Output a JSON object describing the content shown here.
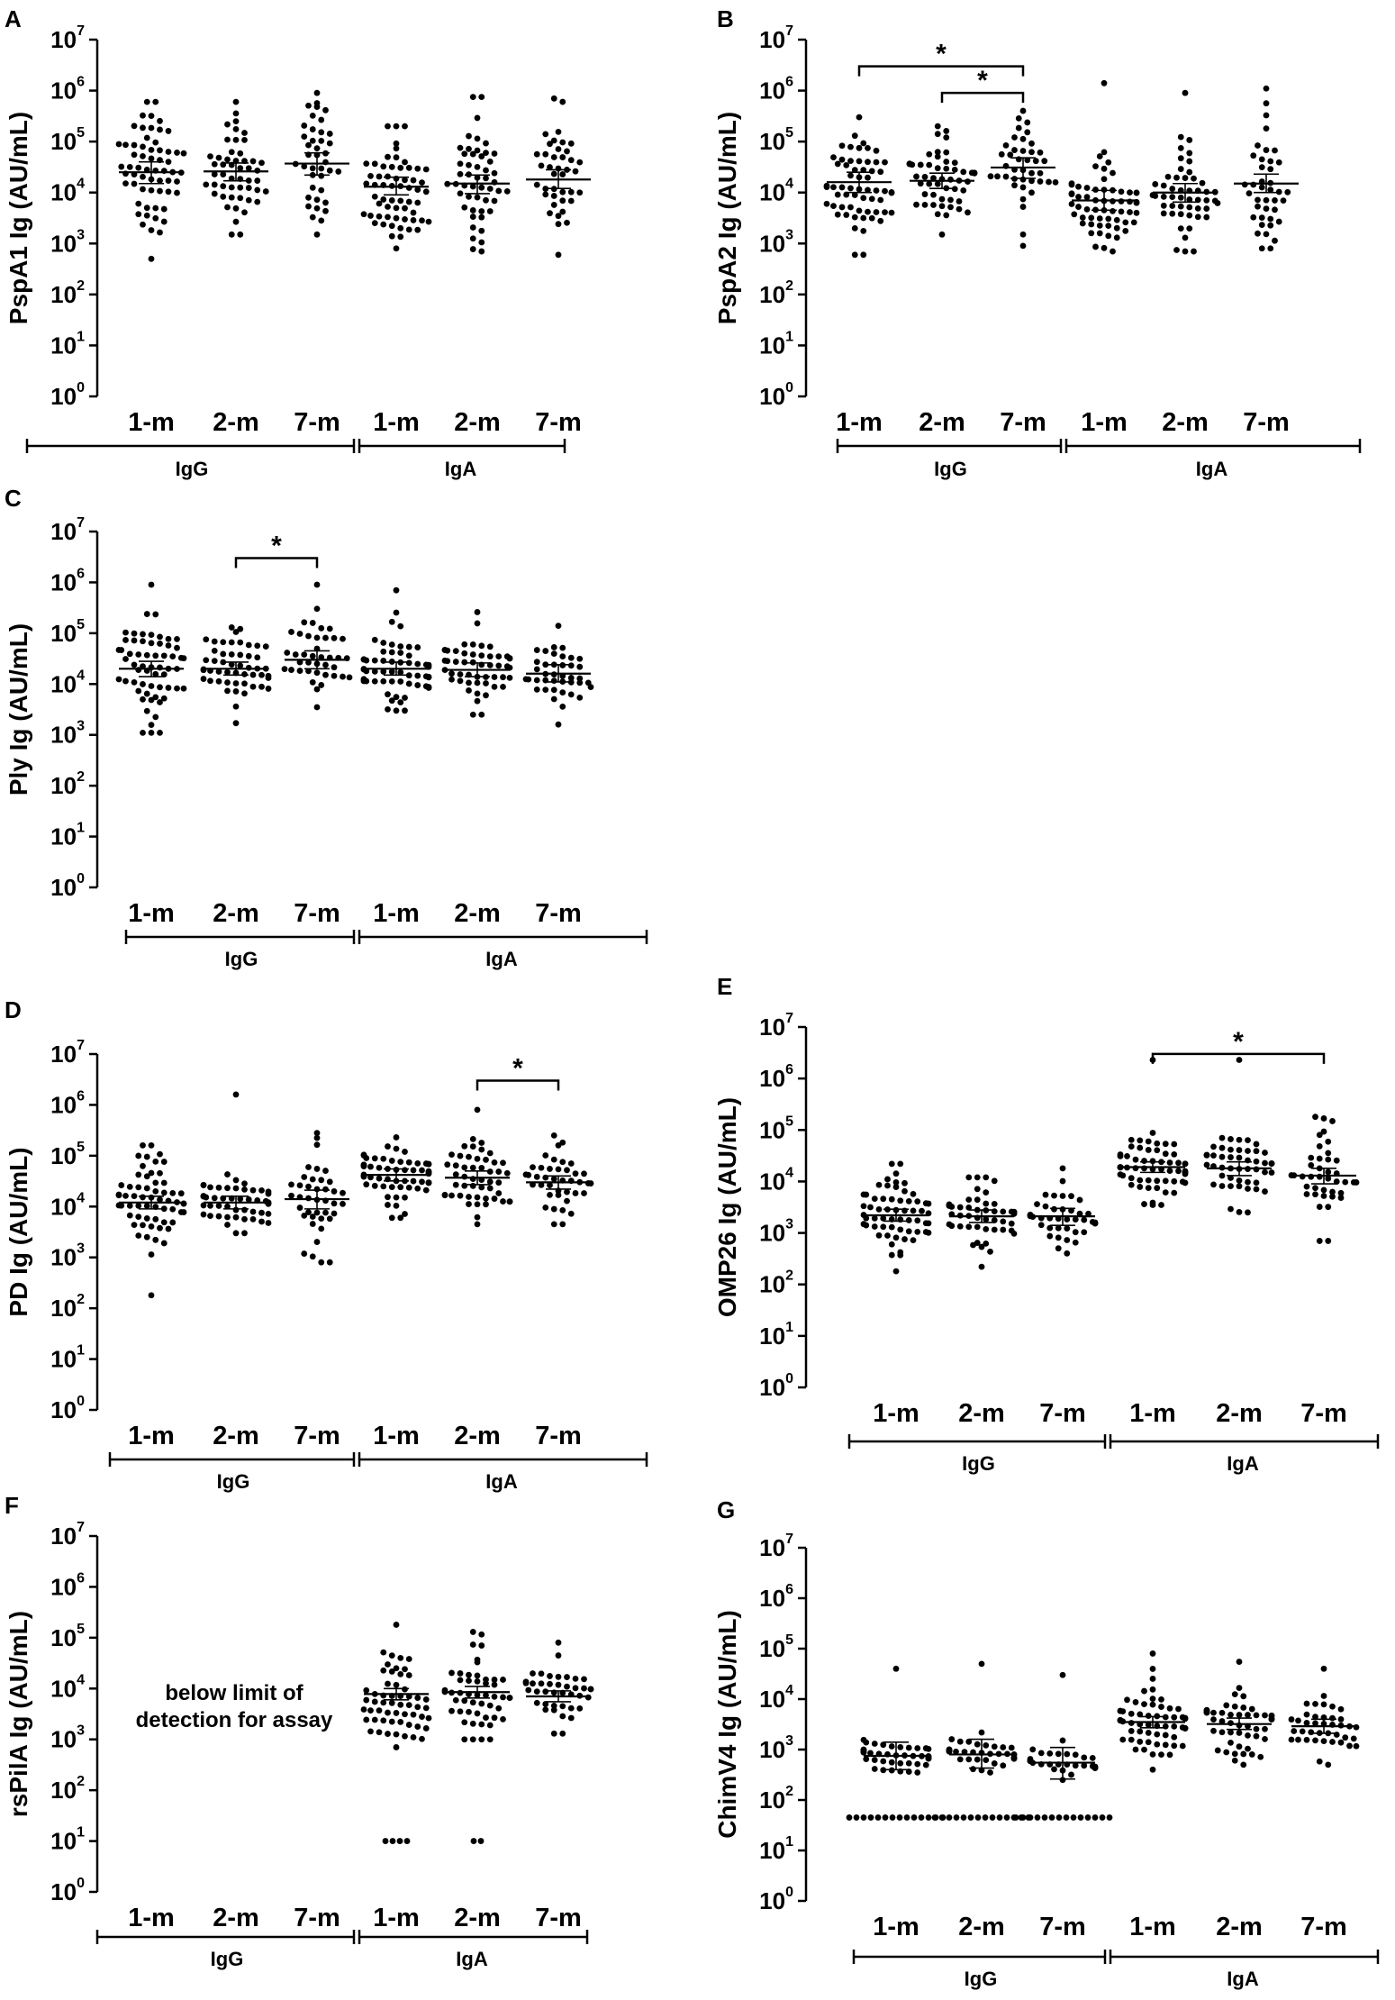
{
  "chart_data": [
    {
      "panel": "A",
      "type": "scatter",
      "ylabel": "PspA1 Ig (AU/mL)",
      "yscale": "log",
      "ylim": [
        1,
        10000000
      ],
      "yticks": [
        {
          "base": "10",
          "exp": "0"
        },
        {
          "base": "10",
          "exp": "1"
        },
        {
          "base": "10",
          "exp": "2"
        },
        {
          "base": "10",
          "exp": "3"
        },
        {
          "base": "10",
          "exp": "4"
        },
        {
          "base": "10",
          "exp": "5"
        },
        {
          "base": "10",
          "exp": "6"
        },
        {
          "base": "10",
          "exp": "7"
        }
      ],
      "categories": [
        "1-m",
        "2-m",
        "7-m",
        "1-m",
        "2-m",
        "7-m"
      ],
      "groups": [
        {
          "label": "IgG",
          "span": [
            0,
            2
          ]
        },
        {
          "label": "IgA",
          "span": [
            3,
            5
          ]
        }
      ],
      "series": [
        {
          "n": 60,
          "median": 25000,
          "ci": [
            15000,
            40000
          ],
          "min": 500,
          "max": 600000
        },
        {
          "n": 50,
          "median": 26000,
          "ci": [
            17000,
            38000
          ],
          "min": 1500,
          "max": 600000
        },
        {
          "n": 40,
          "median": 37000,
          "ci": [
            22000,
            60000
          ],
          "min": 1500,
          "max": 900000
        },
        {
          "n": 60,
          "median": 13000,
          "ci": [
            9000,
            20000
          ],
          "min": 800,
          "max": 200000
        },
        {
          "n": 50,
          "median": 15000,
          "ci": [
            9500,
            22000
          ],
          "min": 700,
          "max": 750000
        },
        {
          "n": 40,
          "median": 18000,
          "ci": [
            12000,
            28000
          ],
          "min": 600,
          "max": 700000
        }
      ],
      "significance": []
    },
    {
      "panel": "B",
      "type": "scatter",
      "ylabel": "PspA2 Ig (AU/mL)",
      "yscale": "log",
      "ylim": [
        1,
        10000000
      ],
      "yticks": [
        {
          "base": "10",
          "exp": "0"
        },
        {
          "base": "10",
          "exp": "1"
        },
        {
          "base": "10",
          "exp": "2"
        },
        {
          "base": "10",
          "exp": "3"
        },
        {
          "base": "10",
          "exp": "4"
        },
        {
          "base": "10",
          "exp": "5"
        },
        {
          "base": "10",
          "exp": "6"
        },
        {
          "base": "10",
          "exp": "7"
        }
      ],
      "categories": [
        "1-m",
        "2-m",
        "7-m",
        "1-m",
        "2-m",
        "7-m"
      ],
      "groups": [
        {
          "label": "IgG",
          "span": [
            0,
            2
          ]
        },
        {
          "label": "IgA",
          "span": [
            3,
            5
          ]
        }
      ],
      "series": [
        {
          "n": 60,
          "median": 16000,
          "ci": [
            10000,
            25000
          ],
          "min": 600,
          "max": 300000
        },
        {
          "n": 50,
          "median": 17000,
          "ci": [
            12000,
            24000
          ],
          "min": 1500,
          "max": 200000
        },
        {
          "n": 40,
          "median": 31000,
          "ci": [
            19000,
            48000
          ],
          "min": 900,
          "max": 400000
        },
        {
          "n": 60,
          "median": 7000,
          "ci": [
            4500,
            11000
          ],
          "min": 700,
          "max": 1400000
        },
        {
          "n": 50,
          "median": 10000,
          "ci": [
            6500,
            15000
          ],
          "min": 700,
          "max": 900000
        },
        {
          "n": 40,
          "median": 15000,
          "ci": [
            10000,
            23000
          ],
          "min": 800,
          "max": 1100000
        }
      ],
      "significance": [
        {
          "from": 0,
          "to": 2,
          "label": "*",
          "y": 3000000
        },
        {
          "from": 1,
          "to": 2,
          "label": "*",
          "y": 900000
        }
      ]
    },
    {
      "panel": "C",
      "type": "scatter",
      "ylabel": "Ply Ig (AU/mL)",
      "yscale": "log",
      "ylim": [
        1,
        10000000
      ],
      "yticks": [
        {
          "base": "10",
          "exp": "0"
        },
        {
          "base": "10",
          "exp": "1"
        },
        {
          "base": "10",
          "exp": "2"
        },
        {
          "base": "10",
          "exp": "3"
        },
        {
          "base": "10",
          "exp": "4"
        },
        {
          "base": "10",
          "exp": "5"
        },
        {
          "base": "10",
          "exp": "6"
        },
        {
          "base": "10",
          "exp": "7"
        }
      ],
      "categories": [
        "1-m",
        "2-m",
        "7-m",
        "1-m",
        "2-m",
        "7-m"
      ],
      "groups": [
        {
          "label": "IgG",
          "span": [
            0,
            2
          ]
        },
        {
          "label": "IgA",
          "span": [
            3,
            5
          ]
        }
      ],
      "series": [
        {
          "n": 60,
          "median": 20000,
          "ci": [
            14000,
            28000
          ],
          "min": 1100,
          "max": 900000
        },
        {
          "n": 50,
          "median": 20000,
          "ci": [
            15000,
            27000
          ],
          "min": 1700,
          "max": 130000
        },
        {
          "n": 40,
          "median": 30000,
          "ci": [
            20000,
            45000
          ],
          "min": 3500,
          "max": 900000
        },
        {
          "n": 60,
          "median": 20000,
          "ci": [
            15000,
            27000
          ],
          "min": 3000,
          "max": 700000
        },
        {
          "n": 50,
          "median": 19000,
          "ci": [
            14000,
            26000
          ],
          "min": 2500,
          "max": 260000
        },
        {
          "n": 40,
          "median": 16000,
          "ci": [
            11000,
            24000
          ],
          "min": 1600,
          "max": 140000
        }
      ],
      "significance": [
        {
          "from": 1,
          "to": 2,
          "label": "*",
          "y": 3000000
        }
      ]
    },
    {
      "panel": "D",
      "type": "scatter",
      "ylabel": "PD Ig (AU/mL)",
      "yscale": "log",
      "ylim": [
        1,
        10000000
      ],
      "yticks": [
        {
          "base": "10",
          "exp": "0"
        },
        {
          "base": "10",
          "exp": "1"
        },
        {
          "base": "10",
          "exp": "2"
        },
        {
          "base": "10",
          "exp": "3"
        },
        {
          "base": "10",
          "exp": "4"
        },
        {
          "base": "10",
          "exp": "5"
        },
        {
          "base": "10",
          "exp": "6"
        },
        {
          "base": "10",
          "exp": "7"
        }
      ],
      "categories": [
        "1-m",
        "2-m",
        "7-m",
        "1-m",
        "2-m",
        "7-m"
      ],
      "groups": [
        {
          "label": "IgG",
          "span": [
            0,
            2
          ]
        },
        {
          "label": "IgA",
          "span": [
            3,
            5
          ]
        }
      ],
      "series": [
        {
          "n": 60,
          "median": 12000,
          "ci": [
            9000,
            16000
          ],
          "min": 180,
          "max": 160000
        },
        {
          "n": 50,
          "median": 12000,
          "ci": [
            9000,
            16000
          ],
          "min": 3000,
          "max": 1600000
        },
        {
          "n": 40,
          "median": 14000,
          "ci": [
            9000,
            21000
          ],
          "min": 800,
          "max": 280000
        },
        {
          "n": 60,
          "median": 42000,
          "ci": [
            32000,
            55000
          ],
          "min": 6000,
          "max": 230000
        },
        {
          "n": 50,
          "median": 37000,
          "ci": [
            27000,
            50000
          ],
          "min": 4500,
          "max": 800000
        },
        {
          "n": 40,
          "median": 30000,
          "ci": [
            22000,
            40000
          ],
          "min": 4500,
          "max": 250000
        }
      ],
      "significance": [
        {
          "from": 4,
          "to": 5,
          "label": "*",
          "y": 3000000
        }
      ]
    },
    {
      "panel": "E",
      "type": "scatter",
      "ylabel": "OMP26 Ig (AU/mL)",
      "yscale": "log",
      "ylim": [
        1,
        10000000
      ],
      "yticks": [
        {
          "base": "10",
          "exp": "0"
        },
        {
          "base": "10",
          "exp": "1"
        },
        {
          "base": "10",
          "exp": "2"
        },
        {
          "base": "10",
          "exp": "3"
        },
        {
          "base": "10",
          "exp": "4"
        },
        {
          "base": "10",
          "exp": "5"
        },
        {
          "base": "10",
          "exp": "6"
        },
        {
          "base": "10",
          "exp": "7"
        }
      ],
      "categories": [
        "1-m",
        "2-m",
        "7-m",
        "1-m",
        "2-m",
        "7-m"
      ],
      "groups": [
        {
          "label": "IgG",
          "span": [
            0,
            2
          ]
        },
        {
          "label": "IgA",
          "span": [
            3,
            5
          ]
        }
      ],
      "series": [
        {
          "n": 60,
          "median": 2200,
          "ci": [
            1700,
            2900
          ],
          "min": 180,
          "max": 22000
        },
        {
          "n": 50,
          "median": 2100,
          "ci": [
            1600,
            2800
          ],
          "min": 220,
          "max": 12000
        },
        {
          "n": 40,
          "median": 2100,
          "ci": [
            1400,
            3000
          ],
          "min": 400,
          "max": 18000
        },
        {
          "n": 60,
          "median": 19000,
          "ci": [
            15000,
            24000
          ],
          "min": 3500,
          "max": 2300000
        },
        {
          "n": 50,
          "median": 18000,
          "ci": [
            13000,
            24000
          ],
          "min": 2500,
          "max": 2300000
        },
        {
          "n": 40,
          "median": 13000,
          "ci": [
            9000,
            18000
          ],
          "min": 700,
          "max": 180000
        }
      ],
      "significance": [
        {
          "from": 3,
          "to": 5,
          "label": "*",
          "y": 3000000
        }
      ]
    },
    {
      "panel": "F",
      "type": "scatter",
      "ylabel": "rsPilA Ig (AU/mL)",
      "yscale": "log",
      "ylim": [
        1,
        10000000
      ],
      "yticks": [
        {
          "base": "10",
          "exp": "0"
        },
        {
          "base": "10",
          "exp": "1"
        },
        {
          "base": "10",
          "exp": "2"
        },
        {
          "base": "10",
          "exp": "3"
        },
        {
          "base": "10",
          "exp": "4"
        },
        {
          "base": "10",
          "exp": "5"
        },
        {
          "base": "10",
          "exp": "6"
        },
        {
          "base": "10",
          "exp": "7"
        }
      ],
      "categories": [
        "1-m",
        "2-m",
        "7-m",
        "1-m",
        "2-m",
        "7-m"
      ],
      "groups": [
        {
          "label": "IgG",
          "span": [
            0,
            2
          ]
        },
        {
          "label": "IgA",
          "span": [
            3,
            5
          ]
        }
      ],
      "annotation": {
        "lines": [
          "below limit of",
          "detection for assay"
        ]
      },
      "series": [
        null,
        null,
        null,
        {
          "n": 56,
          "median": 7800,
          "ci": [
            6000,
            10000
          ],
          "min": 700,
          "max": 180000,
          "floor_value": 10,
          "floor_count": 4
        },
        {
          "n": 50,
          "median": 8500,
          "ci": [
            6500,
            11000
          ],
          "min": 1000,
          "max": 130000,
          "floor_value": 10,
          "floor_count": 2
        },
        {
          "n": 40,
          "median": 7000,
          "ci": [
            5500,
            9000
          ],
          "min": 1300,
          "max": 80000
        }
      ],
      "significance": []
    },
    {
      "panel": "G",
      "type": "scatter",
      "ylabel": "ChimV4 Ig (AU/mL)",
      "yscale": "log",
      "ylim": [
        1,
        10000000
      ],
      "yticks": [
        {
          "base": "10",
          "exp": "0"
        },
        {
          "base": "10",
          "exp": "1"
        },
        {
          "base": "10",
          "exp": "2"
        },
        {
          "base": "10",
          "exp": "3"
        },
        {
          "base": "10",
          "exp": "4"
        },
        {
          "base": "10",
          "exp": "5"
        },
        {
          "base": "10",
          "exp": "6"
        },
        {
          "base": "10",
          "exp": "7"
        }
      ],
      "categories": [
        "1-m",
        "2-m",
        "7-m",
        "1-m",
        "2-m",
        "7-m"
      ],
      "groups": [
        {
          "label": "IgG",
          "span": [
            0,
            2
          ]
        },
        {
          "label": "IgA",
          "span": [
            3,
            5
          ]
        }
      ],
      "series": [
        {
          "n": 46,
          "median": 750,
          "ci": [
            400,
            1400
          ],
          "min": 350,
          "max": 40000,
          "floor_value": 45,
          "floor_count": 14
        },
        {
          "n": 40,
          "median": 800,
          "ci": [
            430,
            1600
          ],
          "min": 350,
          "max": 50000,
          "floor_value": 45,
          "floor_count": 14
        },
        {
          "n": 30,
          "median": 550,
          "ci": [
            260,
            1100
          ],
          "min": 250,
          "max": 30000,
          "floor_value": 45,
          "floor_count": 14
        },
        {
          "n": 60,
          "median": 3500,
          "ci": [
            2700,
            4500
          ],
          "min": 400,
          "max": 80000
        },
        {
          "n": 50,
          "median": 3200,
          "ci": [
            2500,
            4200
          ],
          "min": 500,
          "max": 55000
        },
        {
          "n": 40,
          "median": 2900,
          "ci": [
            2100,
            4000
          ],
          "min": 500,
          "max": 40000
        }
      ],
      "significance": []
    }
  ]
}
